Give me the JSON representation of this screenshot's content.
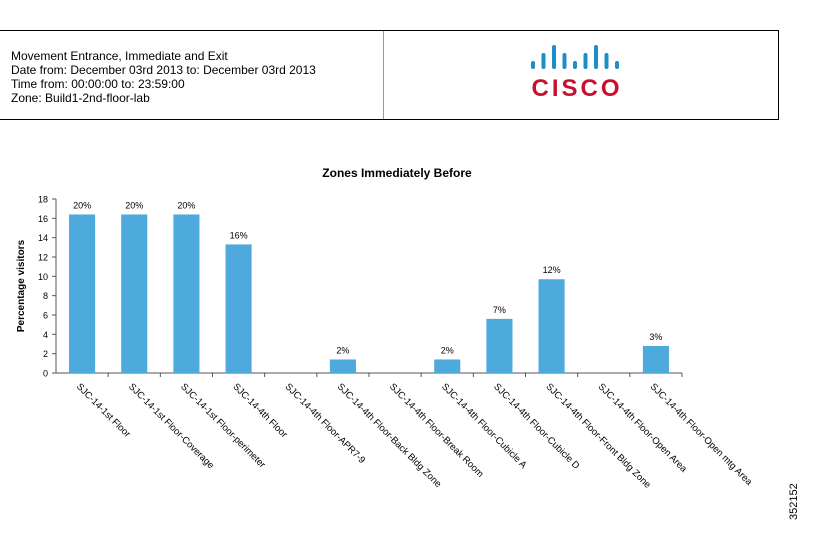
{
  "header": {
    "lines": [
      "Movement Entrance, Immediate and Exit",
      "Date from: December 03rd 2013 to: December 03rd 2013",
      "Time from: 00:00:00 to: 23:59:00",
      "Zone: Build1-2nd-floor-lab"
    ],
    "logo": {
      "icon": "cisco-bars-icon",
      "text": "CISCO",
      "color": "#c8102e",
      "bar_color": "#1b8fc6"
    }
  },
  "figure_id": "352152",
  "chart_data": {
    "type": "bar",
    "title": "Zones Immediately Before",
    "xlabel": "",
    "ylabel": "Percentage visitors",
    "ylim": [
      0,
      18
    ],
    "yticks": [
      0,
      2,
      4,
      6,
      8,
      10,
      12,
      14,
      16,
      18
    ],
    "bar_color": "#4ea9dd",
    "grid": false,
    "categories": [
      "SJC-14-1st Floor",
      "SJC-14-1st Floor-Coverage",
      "SJC-14-1st Floor-perimeter",
      "SJC-14-4th Floor",
      "SJC-14-4th Floor-APR7-9",
      "SJC-14-4th Floor-Back Bldg Zone",
      "SJC-14-4th Floor-Break Room",
      "SJC-14-4th Floor-Cubicle A",
      "SJC-14-4th Floor-Cubicle D",
      "SJC-14-4th Floor-Front Bldg Zone",
      "SJC-14-4th Floor-Open Area",
      "SJC-14-4th Floor-Open mtg Area"
    ],
    "values": [
      16.4,
      16.4,
      16.4,
      13.3,
      0,
      1.4,
      0,
      1.4,
      5.6,
      9.7,
      0,
      2.8
    ],
    "data_labels": [
      "20%",
      "20%",
      "20%",
      "16%",
      "",
      "2%",
      "",
      "2%",
      "7%",
      "12%",
      "",
      "3%"
    ]
  }
}
